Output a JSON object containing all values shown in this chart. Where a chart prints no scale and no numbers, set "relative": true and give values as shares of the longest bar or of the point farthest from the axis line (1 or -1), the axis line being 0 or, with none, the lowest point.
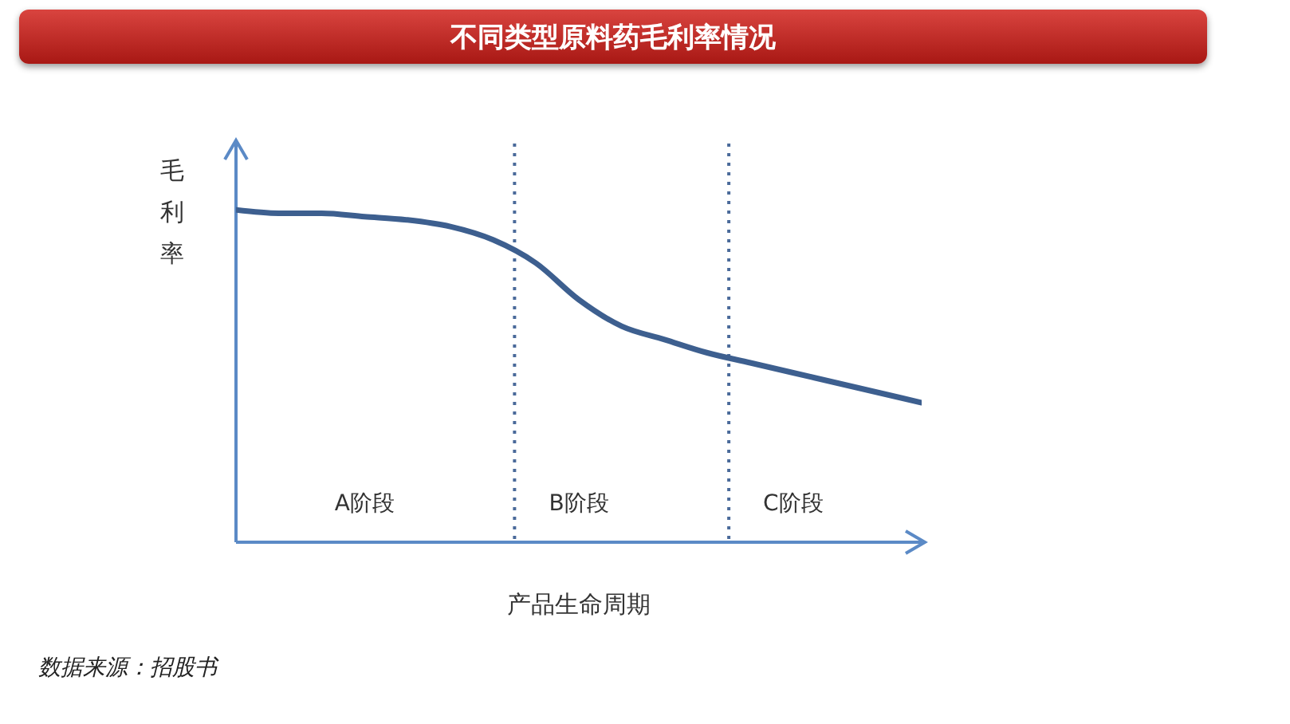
{
  "chart_data": {
    "type": "line",
    "title": "不同类型原料药毛利率情况",
    "xlabel": "产品生命周期",
    "ylabel": "毛利率",
    "relative": true,
    "categories": [
      null,
      null,
      null,
      "A阶段",
      null,
      null,
      null,
      null,
      "B阶段",
      null,
      null,
      null,
      null,
      "C阶段",
      null,
      null,
      null
    ],
    "series": [
      {
        "color": "#3d5f8f",
        "values": [
          1,
          0.99,
          0.99,
          0.98,
          0.97,
          0.95,
          0.91,
          0.84,
          0.73,
          0.65,
          0.61,
          0.57,
          0.54,
          0.51,
          0.48,
          0.45,
          0.42
        ]
      }
    ],
    "marker": "none",
    "annotations": [
      "数据来源：招股书"
    ]
  }
}
